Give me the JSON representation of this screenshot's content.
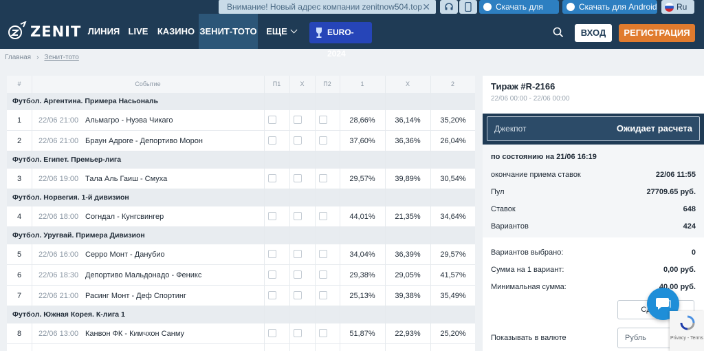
{
  "topbar": {
    "notice": "Внимание! Новый адрес компании zenitnow504.top",
    "notice_close_icon": "close-icon",
    "headset_icon": "headset-icon",
    "phone_icon": "phone-icon",
    "ios_label": "Скачать для iOS",
    "android_label": "Скачать для Android",
    "lang": "Ru"
  },
  "header": {
    "logo_text": "ZENIT",
    "nav": [
      "ЛИНИЯ",
      "LIVE",
      "КАЗИНО",
      "ЗЕНИТ-ТОТО",
      "ЕЩЕ"
    ],
    "euro": "EURO-2024",
    "login": "ВХОД",
    "register": "РЕГИСТРАЦИЯ"
  },
  "breadcrumbs": [
    "Главная",
    "Зенит-тото"
  ],
  "table": {
    "headers": [
      "#",
      "Событие",
      "П1",
      "Х",
      "П2",
      "1",
      "Х",
      "2"
    ],
    "groups": [
      {
        "name": "Футбол. Аргентина. Примера Насьональ",
        "rows": [
          {
            "num": "1",
            "time": "22/06 21:00",
            "event": "Альмагро - Нуэва Чикаго",
            "p1": "28,66%",
            "x": "36,14%",
            "p2": "35,20%"
          },
          {
            "num": "2",
            "time": "22/06 21:00",
            "event": "Браун Адроге - Депортиво Морон",
            "p1": "37,60%",
            "x": "36,36%",
            "p2": "26,04%"
          }
        ]
      },
      {
        "name": "Футбол. Египет. Премьер-лига",
        "rows": [
          {
            "num": "3",
            "time": "22/06 19:00",
            "event": "Тала Аль Гаиш - Смуха",
            "p1": "29,57%",
            "x": "39,89%",
            "p2": "30,54%"
          }
        ]
      },
      {
        "name": "Футбол. Норвегия. 1-й дивизион",
        "rows": [
          {
            "num": "4",
            "time": "22/06 18:00",
            "event": "Согндал - Кунгсвингер",
            "p1": "44,01%",
            "x": "21,35%",
            "p2": "34,64%"
          }
        ]
      },
      {
        "name": "Футбол. Уругвай. Примера Дивизион",
        "rows": [
          {
            "num": "5",
            "time": "22/06 16:00",
            "event": "Серро Монт - Данубио",
            "p1": "34,04%",
            "x": "36,39%",
            "p2": "29,57%"
          },
          {
            "num": "6",
            "time": "22/06 18:30",
            "event": "Депортиво Мальдонадо - Феникс",
            "p1": "29,38%",
            "x": "29,05%",
            "p2": "41,57%"
          },
          {
            "num": "7",
            "time": "22/06 21:00",
            "event": "Расинг Монт - Деф Спортинг",
            "p1": "25,13%",
            "x": "39,38%",
            "p2": "35,49%"
          }
        ]
      },
      {
        "name": "Футбол. Южная Корея. К-лига 1",
        "rows": [
          {
            "num": "8",
            "time": "22/06 13:00",
            "event": "Канвон ФК - Кимчхон Санму",
            "p1": "51,87%",
            "x": "22,93%",
            "p2": "25,20%"
          }
        ]
      }
    ]
  },
  "panel": {
    "title": "Тираж #R-2166",
    "dates": "22/06 00:00 - 22/06 00:00",
    "jackpot_label": "Джекпот",
    "jackpot_status": "Ожидает расчета",
    "as_of": "по состоянию на 21/06 16:19",
    "stats": [
      {
        "k": "окончание приема ставок",
        "v": "22/06 11:55"
      },
      {
        "k": "Пул",
        "v": "27709.65 руб."
      },
      {
        "k": "Ставок",
        "v": "648"
      },
      {
        "k": "Вариантов",
        "v": "424"
      }
    ],
    "selection": [
      {
        "k": "Вариантов выбрано:",
        "v": "0"
      },
      {
        "k": "Сумма на 1 вариант:",
        "v": "0,00 руб."
      },
      {
        "k": "Минимальная сумма:",
        "v": "40,00 руб."
      }
    ],
    "submit": "Сделать",
    "currency_label": "Показывать в валюте",
    "currency_value": "Рубль"
  },
  "recaptcha_text": "Privacy - Terms",
  "colors": {
    "header_bg": "#1f3b55",
    "accent_orange": "#e07b2e",
    "euro_blue": "#2645b8",
    "chat_blue": "#1e8ed8"
  }
}
